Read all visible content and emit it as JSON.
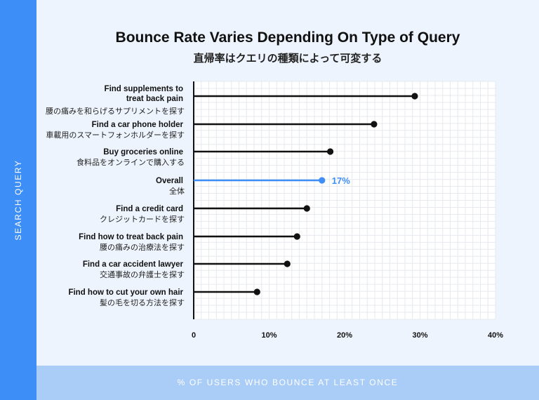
{
  "chart_data": {
    "type": "bar",
    "title": "Bounce Rate Varies Depending On Type of Query",
    "subtitle": "直帰率はクエリの種類によって可変する",
    "ylabel": "SEARCH QUERY",
    "xlabel": "% OF USERS WHO BOUNCE AT LEAST ONCE",
    "xlim": [
      0,
      40
    ],
    "ticks": [
      "0",
      "10%",
      "20%",
      "30%",
      "40%"
    ],
    "grid": true,
    "highlight_color": "#3e8ef7",
    "bar_color": "#111111",
    "categories": [
      {
        "en": [
          "Find supplements to",
          "treat back pain"
        ],
        "jp": "腰の痛みを和らげるサプリメントを探す",
        "value": 29.3
      },
      {
        "en": [
          "Find a car phone holder"
        ],
        "jp": "車載用のスマートフォンホルダーを探す",
        "value": 23.9
      },
      {
        "en": [
          "Buy groceries online"
        ],
        "jp": "食料品をオンラインで購入する",
        "value": 18.1
      },
      {
        "en": [
          "Overall"
        ],
        "jp": "全体",
        "value": 17,
        "highlight": true,
        "label": "17%"
      },
      {
        "en": [
          "Find a credit card"
        ],
        "jp": "クレジットカードを探す",
        "value": 15
      },
      {
        "en": [
          "Find how to treat back pain"
        ],
        "jp": "腰の痛みの治療法を探す",
        "value": 13.7
      },
      {
        "en": [
          "Find a car accident lawyer"
        ],
        "jp": "交通事故の弁護士を探す",
        "value": 12.4
      },
      {
        "en": [
          "Find how to cut your own hair"
        ],
        "jp": "髪の毛を切る方法を探す",
        "value": 8.4
      }
    ]
  }
}
